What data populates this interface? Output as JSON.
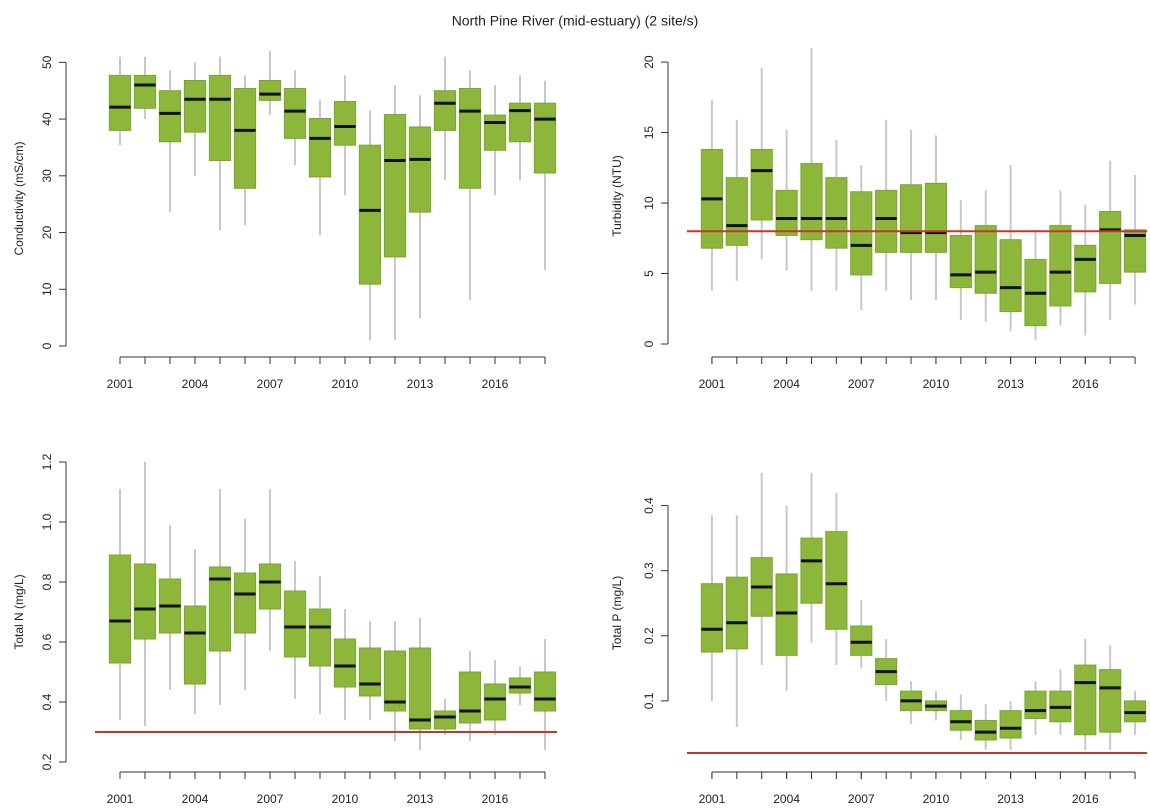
{
  "title": "North Pine River (mid-estuary) (2 site/s)",
  "chart_data": [
    {
      "type": "boxplot",
      "ylabel": "Conductivity (mS/cm)",
      "x": [
        2001,
        2002,
        2003,
        2004,
        2005,
        2006,
        2007,
        2008,
        2009,
        2010,
        2011,
        2012,
        2013,
        2014,
        2015,
        2016,
        2017,
        2018
      ],
      "xlim": [
        2000.4,
        2018.6
      ],
      "xticks": [
        2001,
        2004,
        2007,
        2010,
        2013,
        2016
      ],
      "ylim": [
        0,
        52
      ],
      "yticks": [
        0,
        10,
        20,
        30,
        40,
        50
      ],
      "whislo": [
        35.4,
        40,
        23.6,
        30,
        20.4,
        21.3,
        40.7,
        31.9,
        19.5,
        26.6,
        1,
        1,
        4.9,
        29.2,
        8.1,
        26.6,
        29.2,
        13.4
      ],
      "q1": [
        38,
        41.9,
        36,
        37.7,
        32.7,
        27.8,
        43.3,
        36.6,
        29.8,
        35.4,
        10.9,
        15.7,
        23.6,
        38,
        27.8,
        34.5,
        36,
        30.5
      ],
      "med": [
        42.1,
        46,
        41,
        43.5,
        43.5,
        38,
        44.4,
        41.4,
        36.6,
        38.7,
        23.9,
        32.7,
        32.9,
        42.8,
        41.4,
        39.4,
        41.5,
        40
      ],
      "q3": [
        47.7,
        47.7,
        45,
        46.8,
        47.7,
        45.4,
        46.8,
        45.4,
        40.1,
        43.1,
        35.4,
        40.8,
        38.6,
        45,
        45.4,
        40.7,
        42.8,
        42.8
      ],
      "whishi": [
        51,
        51,
        48.6,
        50,
        51,
        47.7,
        52,
        48.6,
        43.3,
        47.7,
        41.5,
        46,
        44.2,
        51,
        48.6,
        46,
        47.7,
        46.8
      ],
      "color": "#8db73b"
    },
    {
      "type": "boxplot",
      "ylabel": "Turbidity (NTU)",
      "x": [
        2001,
        2002,
        2003,
        2004,
        2005,
        2006,
        2007,
        2008,
        2009,
        2010,
        2011,
        2012,
        2013,
        2014,
        2015,
        2016,
        2017,
        2018
      ],
      "xlim": [
        2000.4,
        2018.6
      ],
      "xticks": [
        2001,
        2004,
        2007,
        2010,
        2013,
        2016
      ],
      "ylim": [
        0,
        21
      ],
      "yticks": [
        0,
        5,
        10,
        15,
        20
      ],
      "whislo": [
        3.8,
        4.5,
        6,
        5.2,
        3.8,
        3.8,
        2.4,
        3.8,
        3.1,
        3.1,
        1.7,
        1.6,
        0.9,
        0.3,
        1.3,
        0.6,
        1.7,
        2.8
      ],
      "q1": [
        6.8,
        7,
        8.8,
        7.7,
        7.4,
        6.8,
        4.9,
        6.5,
        6.5,
        6.5,
        4,
        3.6,
        2.3,
        1.3,
        2.7,
        3.7,
        4.3,
        5.1
      ],
      "med": [
        10.3,
        8.4,
        12.3,
        8.9,
        8.9,
        8.9,
        7,
        8.9,
        7.9,
        7.9,
        4.9,
        5.1,
        4,
        3.6,
        5.1,
        6,
        8.1,
        7.7
      ],
      "q3": [
        13.8,
        11.8,
        13.8,
        10.9,
        12.8,
        11.8,
        10.8,
        10.9,
        11.3,
        11.4,
        7.7,
        8.4,
        7.4,
        6,
        8.4,
        7,
        9.4,
        8.1
      ],
      "whishi": [
        17.3,
        15.9,
        19.6,
        15.2,
        21,
        14.5,
        12.7,
        15.9,
        15.2,
        14.8,
        10.2,
        10.9,
        12.7,
        8.1,
        10.9,
        9.9,
        13,
        12
      ],
      "color": "#8db73b",
      "guideline": 8,
      "guideline_color": "#c0392b"
    },
    {
      "type": "boxplot",
      "ylabel": "Total N (mg/L)",
      "x": [
        2001,
        2002,
        2003,
        2004,
        2005,
        2006,
        2007,
        2008,
        2009,
        2010,
        2011,
        2012,
        2013,
        2014,
        2015,
        2016,
        2017,
        2018
      ],
      "xlim": [
        2000.4,
        2018.6
      ],
      "xticks": [
        2001,
        2004,
        2007,
        2010,
        2013,
        2016
      ],
      "ylim": [
        0.2,
        1.2
      ],
      "yticks": [
        0.2,
        0.4,
        0.6,
        0.8,
        {
          "value": 1,
          "label": "1.0"
        },
        1.2
      ],
      "whislo": [
        0.34,
        0.32,
        0.44,
        0.36,
        0.39,
        0.44,
        0.57,
        0.41,
        0.36,
        0.34,
        0.34,
        0.27,
        0.24,
        0.29,
        0.27,
        0.29,
        0.39,
        0.24
      ],
      "q1": [
        0.53,
        0.61,
        0.63,
        0.46,
        0.57,
        0.63,
        0.71,
        0.55,
        0.52,
        0.45,
        0.42,
        0.37,
        0.31,
        0.31,
        0.33,
        0.34,
        0.43,
        0.37
      ],
      "med": [
        0.67,
        0.71,
        0.72,
        0.63,
        0.81,
        0.76,
        0.8,
        0.65,
        0.65,
        0.52,
        0.46,
        0.4,
        0.34,
        0.35,
        0.37,
        0.41,
        0.45,
        0.41
      ],
      "q3": [
        0.89,
        0.86,
        0.81,
        0.72,
        0.85,
        0.83,
        0.86,
        0.77,
        0.71,
        0.61,
        0.58,
        0.57,
        0.58,
        0.37,
        0.5,
        0.46,
        0.48,
        0.5
      ],
      "whishi": [
        1.11,
        1.2,
        0.99,
        0.91,
        1.11,
        1.01,
        1.11,
        0.87,
        0.82,
        0.71,
        0.67,
        0.67,
        0.68,
        0.41,
        0.57,
        0.54,
        0.52,
        0.61
      ],
      "color": "#8db73b",
      "guideline": 0.3,
      "guideline_color": "#c0392b"
    },
    {
      "type": "boxplot",
      "ylabel": "Total P (mg/L)",
      "x": [
        2001,
        2002,
        2003,
        2004,
        2005,
        2006,
        2007,
        2008,
        2009,
        2010,
        2011,
        2012,
        2013,
        2014,
        2015,
        2016,
        2017,
        2018
      ],
      "xlim": [
        2000.4,
        2018.6
      ],
      "xticks": [
        2001,
        2004,
        2007,
        2010,
        2013,
        2016
      ],
      "ylim": [
        0.02,
        0.45
      ],
      "yticks": [
        0.1,
        0.2,
        0.3,
        0.4
      ],
      "whislo": [
        0.1,
        0.06,
        0.155,
        0.115,
        0.19,
        0.155,
        0.15,
        0.1,
        0.065,
        0.07,
        0.04,
        0.025,
        0.025,
        0.048,
        0.048,
        0.025,
        0.025,
        0.048
      ],
      "q1": [
        0.175,
        0.18,
        0.23,
        0.17,
        0.25,
        0.21,
        0.17,
        0.125,
        0.085,
        0.085,
        0.055,
        0.04,
        0.043,
        0.073,
        0.068,
        0.048,
        0.052,
        0.068
      ],
      "med": [
        0.21,
        0.22,
        0.275,
        0.235,
        0.315,
        0.28,
        0.19,
        0.145,
        0.1,
        0.092,
        0.068,
        0.052,
        0.058,
        0.085,
        0.09,
        0.128,
        0.12,
        0.082
      ],
      "q3": [
        0.28,
        0.29,
        0.32,
        0.295,
        0.35,
        0.36,
        0.215,
        0.165,
        0.115,
        0.1,
        0.085,
        0.07,
        0.085,
        0.115,
        0.115,
        0.155,
        0.148,
        0.1
      ],
      "whishi": [
        0.385,
        0.385,
        0.45,
        0.4,
        0.45,
        0.42,
        0.255,
        0.195,
        0.13,
        0.115,
        0.11,
        0.095,
        0.1,
        0.13,
        0.148,
        0.195,
        0.185,
        0.115
      ],
      "color": "#8db73b",
      "guideline": 0.02,
      "guideline_color": "#c0392b"
    }
  ]
}
